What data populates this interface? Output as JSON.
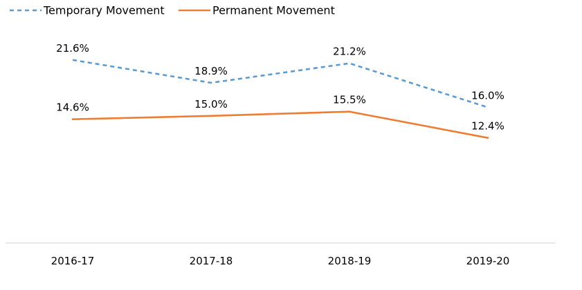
{
  "chart_data": {
    "type": "line",
    "categories": [
      "2016-17",
      "2017-18",
      "2018-19",
      "2019-20"
    ],
    "series": [
      {
        "name": "Temporary Movement",
        "values": [
          21.6,
          18.9,
          21.2,
          16.0
        ],
        "labels": [
          "21.6%",
          "18.9%",
          "21.2%",
          "16.0%"
        ],
        "color": "#5B9BD5",
        "line_style": "dashed"
      },
      {
        "name": "Permanent Movement",
        "values": [
          14.6,
          15.0,
          15.5,
          12.4
        ],
        "labels": [
          "14.6%",
          "15.0%",
          "15.5%",
          "12.4%"
        ],
        "color": "#ED7D31",
        "line_style": "solid"
      }
    ],
    "title": "",
    "xlabel": "",
    "ylabel": "",
    "ylim": [
      0,
      25
    ],
    "grid": false,
    "legend": "top-left",
    "axis_line_color": "#D9D9D9"
  }
}
